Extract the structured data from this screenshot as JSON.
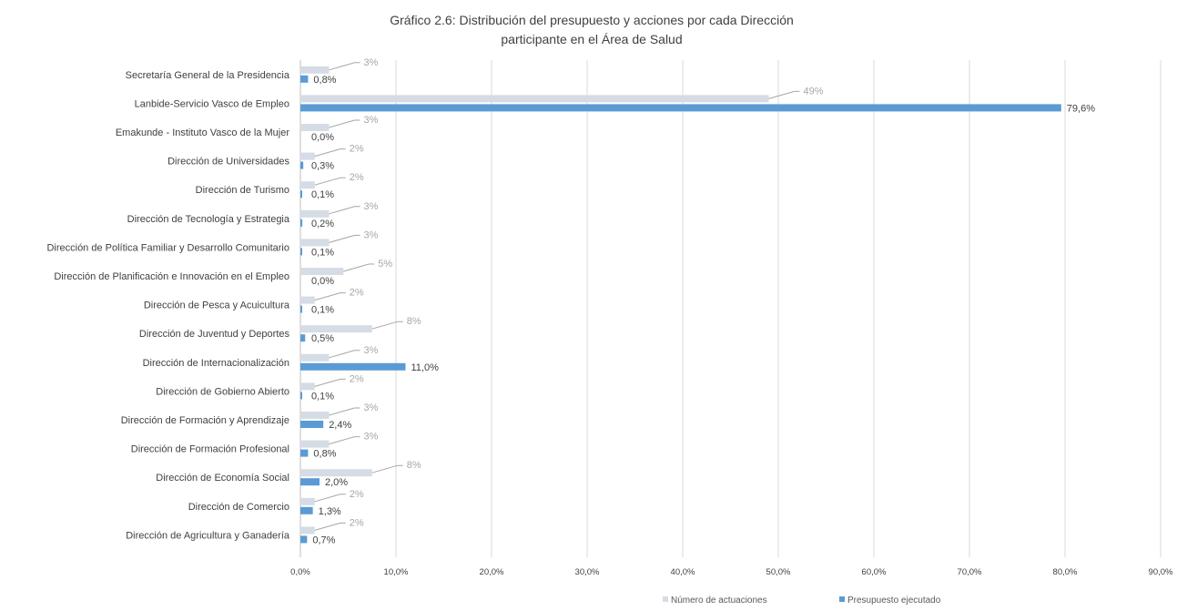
{
  "chart_data": {
    "type": "bar",
    "orientation": "horizontal",
    "title_line1": "Gráfico 2.6: Distribución del presupuesto y acciones por cada Dirección",
    "title_line2": "participante en el Área de Salud",
    "categories": [
      "Secretaría General de la Presidencia",
      "Lanbide-Servicio Vasco de Empleo",
      "Emakunde - Instituto Vasco de la Mujer",
      "Dirección de Universidades",
      "Dirección de Turismo",
      "Dirección de Tecnología y Estrategia",
      "Dirección de Política Familiar y Desarrollo Comunitario",
      "Dirección de Planificación e Innovación en el Empleo",
      "Dirección de Pesca y Acuicultura",
      "Dirección de Juventud y Deportes",
      "Dirección de Internacionalización",
      "Dirección de Gobierno Abierto",
      "Dirección de Formación y Aprendizaje",
      "Dirección de Formación Profesional",
      "Dirección de Economía Social",
      "Dirección de Comercio",
      "Dirección de Agricultura y Ganadería"
    ],
    "series": [
      {
        "name": "Número de actuaciones",
        "color": "#d6dce5",
        "values": [
          3,
          49,
          3,
          1.5,
          1.5,
          3,
          3,
          4.5,
          1.5,
          7.5,
          3,
          1.5,
          3,
          3,
          7.5,
          1.5,
          1.5
        ],
        "labels": [
          "3%",
          "49%",
          "3%",
          "2%",
          "2%",
          "3%",
          "3%",
          "5%",
          "2%",
          "8%",
          "3%",
          "2%",
          "3%",
          "3%",
          "8%",
          "2%",
          "2%"
        ]
      },
      {
        "name": "Presupuesto ejecutado",
        "color": "#5b9bd5",
        "values": [
          0.8,
          79.6,
          0.0,
          0.3,
          0.1,
          0.2,
          0.1,
          0.0,
          0.1,
          0.5,
          11.0,
          0.1,
          2.4,
          0.8,
          2.0,
          1.3,
          0.7
        ],
        "labels": [
          "0,8%",
          "79,6%",
          "0,0%",
          "0,3%",
          "0,1%",
          "0,2%",
          "0,1%",
          "0,0%",
          "0,1%",
          "0,5%",
          "11,0%",
          "0,1%",
          "2,4%",
          "0,8%",
          "2,0%",
          "1,3%",
          "0,7%"
        ]
      }
    ],
    "xticks": [
      "0,0%",
      "10,0%",
      "20,0%",
      "30,0%",
      "40,0%",
      "50,0%",
      "60,0%",
      "70,0%",
      "80,0%",
      "90,0%"
    ],
    "xlim": [
      0,
      90
    ],
    "grid": "vertical",
    "legend_position": "bottom-right"
  }
}
